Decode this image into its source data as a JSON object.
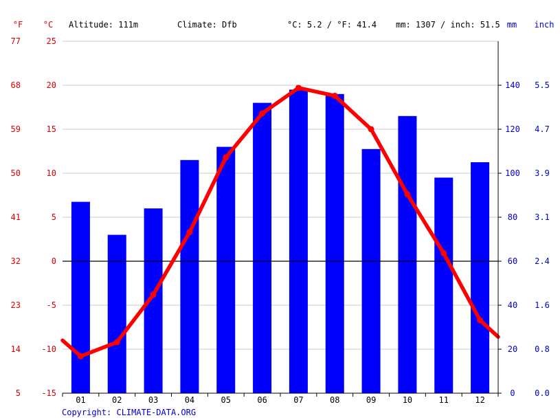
{
  "header": {
    "unit_f": "°F",
    "unit_c": "°C",
    "altitude": "Altitude: 111m",
    "climate": "Climate: Dfb",
    "avg_temp": "°C: 5.2 / °F: 41.4",
    "precip_total": "mm: 1307 / inch: 51.5",
    "unit_mm": "mm",
    "unit_inch": "inch"
  },
  "footer": {
    "copyright": "Copyright: CLIMATE-DATA.ORG"
  },
  "colors": {
    "temp": "#ff0000",
    "precip": "#0000ff",
    "grid": "#cccccc",
    "axis_text_left": "#e00000",
    "axis_text_right": "#0000cc",
    "zero_line": "#000000",
    "copyright": "#0000cc"
  },
  "chart_data": {
    "type": "bar+line",
    "title": "",
    "categories": [
      "01",
      "02",
      "03",
      "04",
      "05",
      "06",
      "07",
      "08",
      "09",
      "10",
      "11",
      "12"
    ],
    "series": [
      {
        "name": "Precipitation (mm)",
        "type": "bar",
        "axis": "right",
        "values": [
          87,
          72,
          84,
          106,
          112,
          132,
          138,
          136,
          111,
          126,
          98,
          105
        ]
      },
      {
        "name": "Temperature (°C)",
        "type": "line",
        "axis": "left",
        "values": [
          -10.8,
          -9.2,
          -3.8,
          3.3,
          11.8,
          16.8,
          19.7,
          18.8,
          15.0,
          7.6,
          0.9,
          -6.7
        ],
        "edge_values": [
          -9.0,
          -8.6
        ]
      }
    ],
    "y_left_c": {
      "ylim": [
        -15,
        25
      ],
      "ticks": [
        "-15",
        "-10",
        "-5",
        "0",
        "5",
        "10",
        "15",
        "20",
        "25"
      ]
    },
    "y_left_f": {
      "ticks": [
        "5",
        "14",
        "23",
        "32",
        "41",
        "50",
        "59",
        "68",
        "77"
      ]
    },
    "y_right_mm": {
      "ylim": [
        0,
        160
      ],
      "ticks": [
        "0",
        "20",
        "40",
        "60",
        "80",
        "100",
        "120",
        "140"
      ]
    },
    "y_right_inch": {
      "ticks": [
        "0.0",
        "0.8",
        "1.6",
        "2.4",
        "3.1",
        "3.9",
        "4.7",
        "5.5"
      ]
    }
  }
}
